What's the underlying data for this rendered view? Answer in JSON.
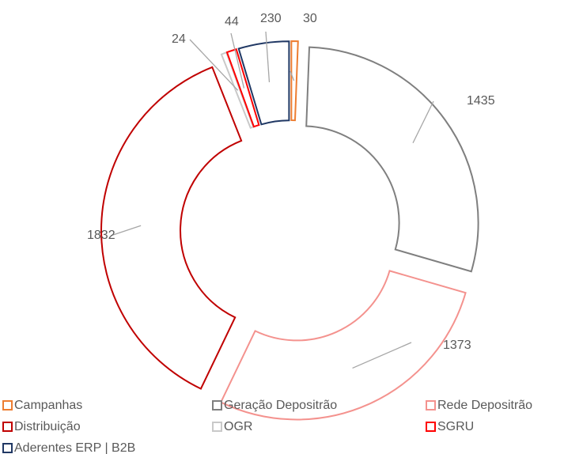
{
  "chart_data": {
    "type": "doughnut",
    "categories": [
      "Campanhas",
      "Geração Depositrão",
      "Rede Depositrão",
      "Distribuição",
      "OGR",
      "SGRU",
      "Aderentes ERP | B2B"
    ],
    "values": [
      30,
      1435,
      1373,
      1832,
      24,
      44,
      230
    ],
    "colors": [
      "#ed7d31",
      "#7f7f7f",
      "#f4928e",
      "#c00000",
      "#c9c9c9",
      "#ff0000",
      "#203864"
    ],
    "legend": "bottom"
  }
}
